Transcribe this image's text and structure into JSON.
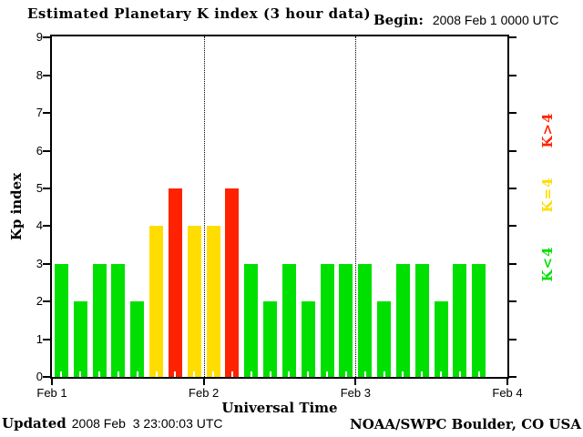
{
  "header": {
    "title": "Estimated Planetary K index (3 hour data)",
    "begin_label": "Begin:",
    "begin_value": "2008 Feb 1 0000 UTC"
  },
  "footer": {
    "updated_label": "Updated",
    "updated_value": "2008 Feb  3 23:00:03 UTC",
    "source": "NOAA/SWPC Boulder, CO USA"
  },
  "chart_data": {
    "type": "bar",
    "title": "Estimated Planetary K index (3 hour data)",
    "xlabel": "Universal Time",
    "ylabel": "Kp index",
    "ylim": [
      0,
      9
    ],
    "yticks": [
      0,
      1,
      2,
      3,
      4,
      5,
      6,
      7,
      8,
      9
    ],
    "x_tick_labels": [
      "Feb 1",
      "Feb 2",
      "Feb 3",
      "Feb 4"
    ],
    "interval_hours": 3,
    "slots_per_day": 8,
    "total_slots": 24,
    "values": [
      3,
      2,
      3,
      3,
      2,
      4,
      5,
      4,
      4,
      5,
      3,
      2,
      3,
      2,
      3,
      3,
      3,
      2,
      3,
      3,
      2,
      3,
      3
    ],
    "day_boundaries": [
      8,
      16
    ],
    "colors": {
      "k_lt_4": "#00e000",
      "k_eq_4": "#ffdd00",
      "k_gt_4": "#ff2200"
    },
    "legend": [
      {
        "label": "K>4",
        "color": "#ff2200"
      },
      {
        "label": "K=4",
        "color": "#ffdd00"
      },
      {
        "label": "K<4",
        "color": "#00e000"
      }
    ],
    "grid": "dotted vertical lines at day boundaries",
    "legend_position": "right, rotated 90deg"
  }
}
